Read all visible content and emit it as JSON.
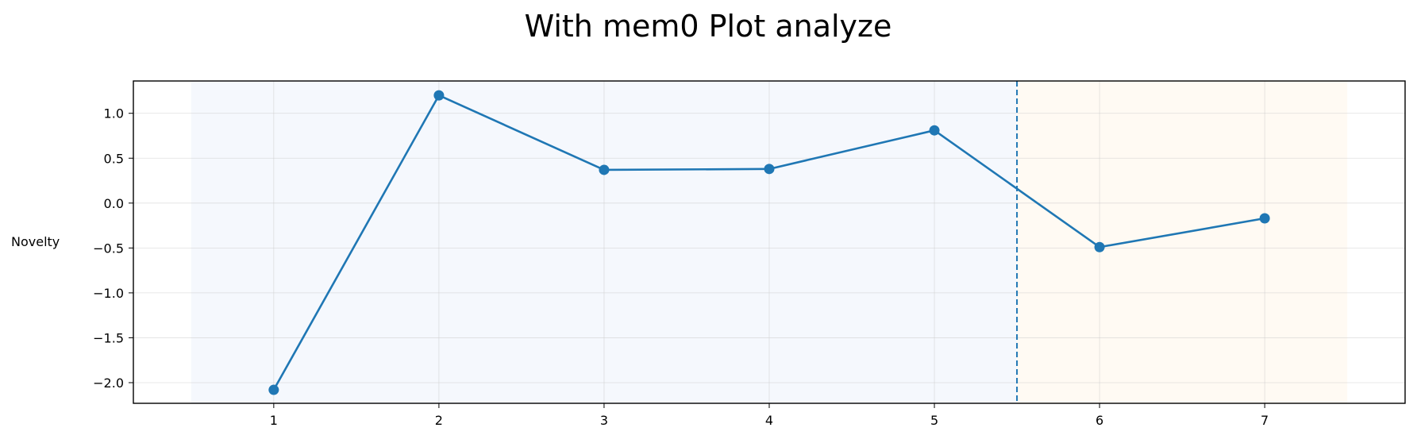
{
  "chart_data": {
    "type": "line",
    "title": "With mem0 Plot analyze",
    "xlabel": "",
    "ylabel": "Novelty",
    "x": [
      1,
      2,
      3,
      4,
      5,
      6,
      7
    ],
    "series": [
      {
        "values": [
          -2.08,
          1.2,
          0.37,
          0.38,
          0.81,
          -0.49,
          -0.17
        ],
        "color": "#1f77b4",
        "marker": "circle"
      }
    ],
    "xlim": [
      0.15,
      7.85
    ],
    "ylim": [
      -2.23,
      1.36
    ],
    "xticks": [
      1,
      2,
      3,
      4,
      5,
      6,
      7
    ],
    "yticks": [
      1.0,
      0.5,
      0.0,
      -0.5,
      -1.0,
      -1.5,
      -2.0
    ],
    "ytick_labels": [
      "1.0",
      "0.5",
      "0.0",
      "−0.5",
      "−1.0",
      "−1.5",
      "−2.0"
    ],
    "grid": true,
    "shaded_regions": [
      {
        "x_start": 0.5,
        "x_end": 5.5,
        "color": "#f5f8fd"
      },
      {
        "x_start": 5.5,
        "x_end": 7.5,
        "color": "#fffaf3"
      }
    ],
    "vertical_lines": [
      {
        "x": 5.5,
        "style": "dashed",
        "color": "#1f77b4"
      }
    ]
  }
}
